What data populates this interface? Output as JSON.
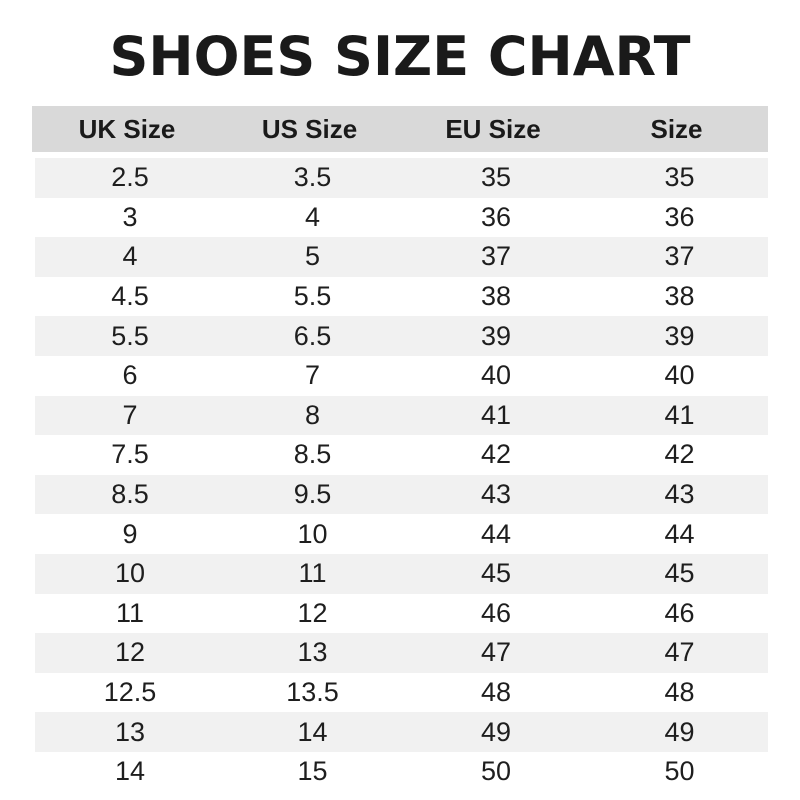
{
  "title": "SHOES SIZE CHART",
  "columns": [
    "UK Size",
    "US Size",
    "EU Size",
    "Size"
  ],
  "rows": [
    [
      "2.5",
      "3.5",
      "35",
      "35"
    ],
    [
      "3",
      "4",
      "36",
      "36"
    ],
    [
      "4",
      "5",
      "37",
      "37"
    ],
    [
      "4.5",
      "5.5",
      "38",
      "38"
    ],
    [
      "5.5",
      "6.5",
      "39",
      "39"
    ],
    [
      "6",
      "7",
      "40",
      "40"
    ],
    [
      "7",
      "8",
      "41",
      "41"
    ],
    [
      "7.5",
      "8.5",
      "42",
      "42"
    ],
    [
      "8.5",
      "9.5",
      "43",
      "43"
    ],
    [
      "9",
      "10",
      "44",
      "44"
    ],
    [
      "10",
      "11",
      "45",
      "45"
    ],
    [
      "11",
      "12",
      "46",
      "46"
    ],
    [
      "12",
      "13",
      "47",
      "47"
    ],
    [
      "12.5",
      "13.5",
      "48",
      "48"
    ],
    [
      "13",
      "14",
      "49",
      "49"
    ],
    [
      "14",
      "15",
      "50",
      "50"
    ]
  ],
  "colors": {
    "header_bg": "#d9d9d9",
    "stripe_bg": "#f1f1f1",
    "text": "#1e1e1e"
  }
}
